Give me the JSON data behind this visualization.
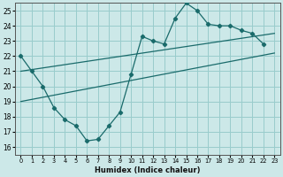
{
  "xlabel": "Humidex (Indice chaleur)",
  "background_color": "#cce8e8",
  "grid_color": "#99cccc",
  "line_color": "#1a6b6b",
  "xlim": [
    -0.5,
    23.5
  ],
  "ylim": [
    15.5,
    25.5
  ],
  "xticks": [
    0,
    1,
    2,
    3,
    4,
    5,
    6,
    7,
    8,
    9,
    10,
    11,
    12,
    13,
    14,
    15,
    16,
    17,
    18,
    19,
    20,
    21,
    22,
    23
  ],
  "yticks": [
    16,
    17,
    18,
    19,
    20,
    21,
    22,
    23,
    24,
    25
  ],
  "curve_x": [
    0,
    1,
    2,
    3,
    4,
    5,
    6,
    7,
    8,
    9,
    10,
    11,
    12,
    13,
    14,
    15,
    16,
    17,
    18,
    19,
    20,
    21,
    22
  ],
  "curve_y": [
    22.0,
    21.0,
    20.0,
    18.6,
    17.8,
    17.4,
    16.4,
    16.5,
    17.4,
    18.3,
    20.8,
    23.3,
    23.0,
    22.8,
    24.5,
    25.5,
    25.0,
    24.1,
    24.0,
    24.0,
    23.7,
    23.5,
    22.8
  ],
  "upper_line_x": [
    0,
    23
  ],
  "upper_line_y": [
    21.0,
    23.5
  ],
  "lower_line_x": [
    0,
    23
  ],
  "lower_line_y": [
    19.0,
    22.2
  ]
}
